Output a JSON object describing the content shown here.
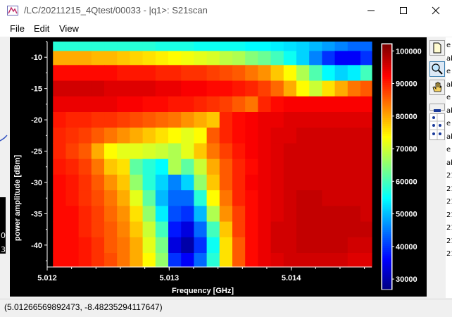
{
  "window": {
    "title": "/LC/20211215_4Qtest/00033 - |q1>: S21scan",
    "minimize_label": "—",
    "maximize_label": "☐",
    "close_label": "✕"
  },
  "menu": {
    "items": [
      "File",
      "Edit",
      "View"
    ]
  },
  "plot": {
    "background": "#000000",
    "x_label": "Frequency [GHz]",
    "y_label": "power amplitude [dBm]",
    "x_ticks": [
      "5.012",
      "5.013",
      "5.014"
    ],
    "y_ticks": [
      "-10",
      "-15",
      "-20",
      "-25",
      "-30",
      "-35",
      "-40"
    ],
    "colorbar_ticks": [
      "100000",
      "90000",
      "80000",
      "70000",
      "60000",
      "50000",
      "40000",
      "30000"
    ]
  },
  "chart_data": {
    "type": "heatmap",
    "xlabel": "Frequency [GHz]",
    "ylabel": "power amplitude [dBm]",
    "xlim": [
      5.012,
      5.01466
    ],
    "ylim": [
      -43.5,
      -7.5
    ],
    "x_ticks": [
      5.012,
      5.013,
      5.014
    ],
    "y_ticks": [
      -10,
      -15,
      -20,
      -25,
      -30,
      -35,
      -40
    ],
    "colorbar": {
      "min": 27000,
      "max": 102000,
      "ticks": [
        100000,
        90000,
        80000,
        70000,
        60000,
        50000,
        40000,
        30000
      ],
      "colormap": "jet"
    },
    "power_dbm": [
      -8,
      -10,
      -12.5,
      -15,
      -17.5,
      -20,
      -22.5,
      -25,
      -27.5,
      -30,
      -32.5,
      -35,
      -37.5,
      -40,
      -42.5
    ],
    "freq_columns": 26,
    "freq_start_ghz": 5.0121,
    "freq_step_ghz": 0.000105,
    "values": [
      [
        58000,
        58000,
        58000,
        58000,
        58000,
        58000,
        58000,
        58000,
        57000,
        57000,
        57000,
        56000,
        56000,
        56000,
        56000,
        55000,
        55000,
        54000,
        53000,
        52000,
        50000,
        48000,
        46000,
        44000,
        44000,
        45000
      ],
      [
        80000,
        80000,
        80000,
        79000,
        79000,
        78000,
        77000,
        76000,
        75000,
        74000,
        73000,
        72000,
        71000,
        69000,
        68000,
        65000,
        63000,
        60000,
        56000,
        52000,
        46000,
        40000,
        36000,
        36000,
        40000,
        48000
      ],
      [
        92000,
        92000,
        92000,
        92000,
        92000,
        91000,
        91000,
        91000,
        90000,
        90000,
        89000,
        89000,
        88000,
        87000,
        86000,
        84000,
        82000,
        78000,
        74000,
        68000,
        61000,
        55000,
        52000,
        54000,
        60000,
        66000
      ],
      [
        96000,
        96000,
        96000,
        96000,
        95000,
        95000,
        95000,
        95000,
        94000,
        94000,
        93000,
        93000,
        92000,
        92000,
        91000,
        90000,
        88000,
        85000,
        80000,
        74000,
        70000,
        76000,
        80000,
        84000,
        86000,
        87000
      ],
      [
        94000,
        94000,
        94000,
        94000,
        94000,
        93000,
        93000,
        92000,
        92000,
        91000,
        91000,
        90000,
        89000,
        88000,
        86000,
        84000,
        90000,
        92000,
        93000,
        93000,
        93000,
        93000,
        93000,
        93000,
        93000,
        93000
      ],
      [
        91000,
        90000,
        90000,
        89000,
        89000,
        88000,
        87000,
        86000,
        85000,
        84000,
        82000,
        80000,
        78000,
        90000,
        92000,
        93000,
        94000,
        94000,
        95000,
        95000,
        95000,
        95000,
        95000,
        95000,
        95000,
        95000
      ],
      [
        90000,
        89000,
        88000,
        86000,
        84000,
        82000,
        80000,
        78000,
        76000,
        74000,
        72000,
        74000,
        86000,
        90000,
        92000,
        93000,
        94000,
        95000,
        95000,
        96000,
        96000,
        96000,
        96000,
        96000,
        96000,
        96000
      ],
      [
        90000,
        88000,
        86000,
        80000,
        74000,
        72000,
        72000,
        71000,
        70000,
        68000,
        72000,
        78000,
        84000,
        88000,
        91000,
        93000,
        94000,
        95000,
        96000,
        96000,
        96000,
        96000,
        96000,
        96000,
        96000,
        96000
      ],
      [
        91000,
        90000,
        88000,
        84000,
        78000,
        76000,
        62000,
        58000,
        55000,
        68000,
        62000,
        70000,
        80000,
        86000,
        90000,
        92000,
        94000,
        95000,
        96000,
        96000,
        96000,
        96000,
        96000,
        96000,
        96000,
        96000
      ],
      [
        92000,
        91000,
        89000,
        86000,
        82000,
        78000,
        66000,
        58000,
        52000,
        46000,
        52000,
        66000,
        78000,
        86000,
        90000,
        93000,
        94000,
        95000,
        96000,
        96000,
        96000,
        96000,
        96000,
        96000,
        96000,
        96000
      ],
      [
        92000,
        91000,
        89000,
        87000,
        84000,
        80000,
        72000,
        62000,
        50000,
        44000,
        44000,
        58000,
        74000,
        84000,
        90000,
        92000,
        94000,
        95000,
        96000,
        97000,
        97000,
        96000,
        96000,
        96000,
        96000,
        96000
      ],
      [
        92000,
        92000,
        90000,
        88000,
        85000,
        82000,
        76000,
        66000,
        54000,
        42000,
        40000,
        50000,
        68000,
        82000,
        88000,
        92000,
        94000,
        95000,
        96000,
        97000,
        97000,
        97000,
        97000,
        97000,
        96000,
        96000
      ],
      [
        92000,
        92000,
        90000,
        88000,
        86000,
        83000,
        78000,
        70000,
        60000,
        38000,
        34000,
        44000,
        60000,
        78000,
        88000,
        92000,
        94000,
        96000,
        96000,
        97000,
        97000,
        97000,
        97000,
        97000,
        97000,
        96000
      ],
      [
        92000,
        92000,
        91000,
        89000,
        86000,
        84000,
        80000,
        72000,
        64000,
        34000,
        30000,
        40000,
        56000,
        76000,
        86000,
        92000,
        94000,
        96000,
        96000,
        97000,
        97000,
        97000,
        97000,
        96000,
        96000,
        96000
      ],
      [
        92000,
        92000,
        91000,
        89000,
        87000,
        84000,
        80000,
        74000,
        66000,
        40000,
        36000,
        44000,
        58000,
        76000,
        86000,
        92000,
        94000,
        95000,
        96000,
        96000,
        96000,
        96000,
        96000,
        95000,
        95000,
        95000
      ]
    ]
  },
  "toolbar": {
    "icons": [
      "page-icon",
      "zoom-icon",
      "pan-hand-icon",
      "colorbar-toggle-icon",
      "axis-arrows-icon"
    ]
  },
  "status": {
    "coordinates": "(5.01266569892473, -8.48235294117647)"
  },
  "background_window": {
    "right_fragments": [
      "e",
      "ab",
      "e",
      "ab",
      "e",
      "ab",
      "e",
      "ab",
      "e",
      "ab",
      "21",
      "21",
      "21",
      "21",
      "21",
      "21",
      "21"
    ],
    "left_fragments": [
      "0",
      "3"
    ]
  }
}
